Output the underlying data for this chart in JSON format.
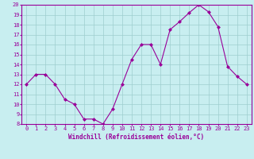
{
  "x": [
    0,
    1,
    2,
    3,
    4,
    5,
    6,
    7,
    8,
    9,
    10,
    11,
    12,
    13,
    14,
    15,
    16,
    17,
    18,
    19,
    20,
    21,
    22,
    23
  ],
  "y": [
    12,
    13,
    13,
    12,
    10.5,
    10,
    8.5,
    8.5,
    8,
    9.5,
    12,
    14.5,
    16,
    16,
    14,
    17.5,
    18.3,
    19.2,
    20,
    19.3,
    17.8,
    13.8,
    12.8,
    12
  ],
  "ylim": [
    8,
    20
  ],
  "xlim": [
    -0.5,
    23.5
  ],
  "yticks": [
    8,
    9,
    10,
    11,
    12,
    13,
    14,
    15,
    16,
    17,
    18,
    19,
    20
  ],
  "xticks": [
    0,
    1,
    2,
    3,
    4,
    5,
    6,
    7,
    8,
    9,
    10,
    11,
    12,
    13,
    14,
    15,
    16,
    17,
    18,
    19,
    20,
    21,
    22,
    23
  ],
  "xlabel": "Windchill (Refroidissement éolien,°C)",
  "line_color": "#990099",
  "marker": "D",
  "marker_size": 2.0,
  "bg_color": "#c8eef0",
  "grid_color": "#9ecece",
  "label_fontsize": 5.0,
  "xlabel_fontsize": 5.5
}
